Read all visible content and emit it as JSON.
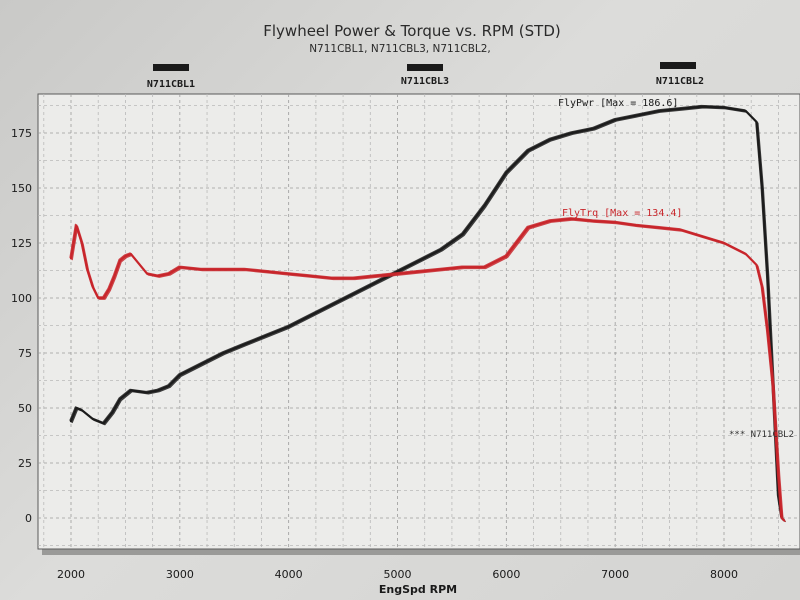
{
  "chart_data": {
    "type": "line",
    "title": "Flywheel Power & Torque vs. RPM (STD)",
    "subtitle": "N711CBL1, N711CBL3, N711CBL2,",
    "xlabel": "EngSpd RPM",
    "ylabel": "",
    "xlim": [
      1800,
      8600
    ],
    "ylim": [
      -10,
      190
    ],
    "grid": true,
    "x_ticks": [
      2000,
      3000,
      4000,
      5000,
      6000,
      7000,
      8000
    ],
    "y_ticks": [
      0,
      25,
      50,
      75,
      100,
      125,
      150,
      175
    ],
    "legend": [
      "N711CBL1",
      "N711CBL3",
      "N711CBL2"
    ],
    "series": [
      {
        "name": "FlyPwr",
        "color": "#1c1c1c",
        "x": [
          2000,
          2050,
          2100,
          2200,
          2300,
          2380,
          2450,
          2550,
          2700,
          2800,
          2900,
          3000,
          3200,
          3400,
          3600,
          3800,
          4000,
          4200,
          4400,
          4600,
          4800,
          5000,
          5200,
          5400,
          5600,
          5800,
          6000,
          6200,
          6400,
          6600,
          6800,
          7000,
          7200,
          7400,
          7600,
          7800,
          8000,
          8200,
          8300,
          8350,
          8400,
          8450,
          8500,
          8530,
          8550
        ],
        "y": [
          44,
          50,
          49,
          45,
          43,
          48,
          54,
          58,
          57,
          58,
          60,
          65,
          70,
          75,
          79,
          83,
          87,
          92,
          97,
          102,
          107,
          112,
          117,
          122,
          129,
          142,
          157,
          167,
          172,
          175,
          177,
          181,
          183,
          185,
          186,
          187,
          186.6,
          185,
          180,
          150,
          110,
          60,
          10,
          0,
          -1
        ]
      },
      {
        "name": "FlyTrq",
        "color": "#c8262b",
        "x": [
          2000,
          2050,
          2100,
          2150,
          2200,
          2250,
          2300,
          2350,
          2400,
          2450,
          2500,
          2550,
          2600,
          2700,
          2800,
          2900,
          3000,
          3200,
          3400,
          3600,
          3800,
          4000,
          4200,
          4400,
          4600,
          4800,
          5000,
          5200,
          5400,
          5600,
          5800,
          6000,
          6200,
          6400,
          6600,
          6800,
          7000,
          7200,
          7400,
          7600,
          7800,
          8000,
          8200,
          8300,
          8350,
          8400,
          8450,
          8500,
          8530,
          8550
        ],
        "y": [
          118,
          133,
          125,
          113,
          105,
          100,
          100,
          104,
          110,
          117,
          119,
          120,
          117,
          111,
          110,
          111,
          114,
          113,
          113,
          113,
          112,
          111,
          110,
          109,
          109,
          110,
          111,
          112,
          113,
          114,
          114,
          119,
          132,
          135,
          136,
          135,
          134.4,
          133,
          132,
          131,
          128,
          125,
          120,
          115,
          105,
          85,
          60,
          20,
          0,
          -1
        ]
      }
    ],
    "annotations": {
      "power_max": "FlyPwr [Max = 186.6]",
      "torque_max": "FlyTrq [Max = 134.4]",
      "side_note": "*** N711CBL2"
    }
  }
}
